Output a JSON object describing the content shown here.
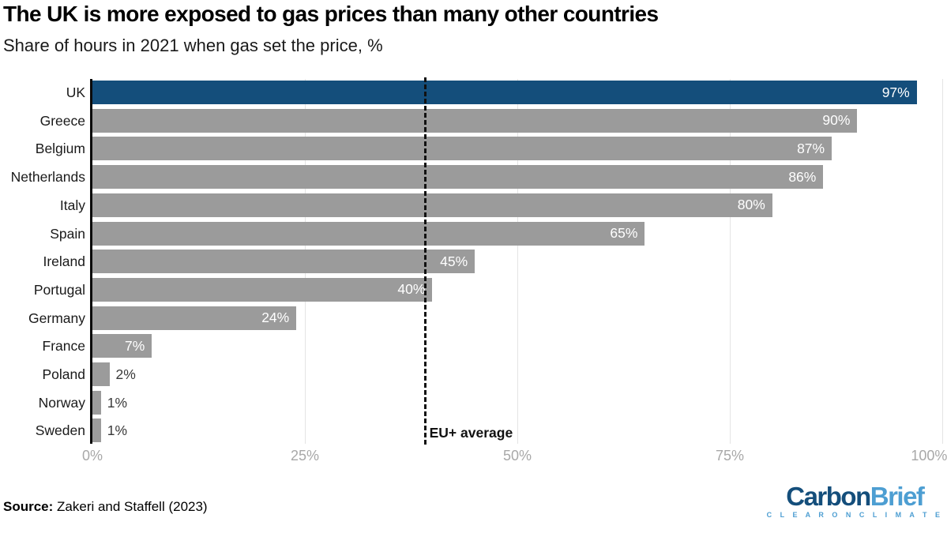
{
  "title": "The UK is more exposed to gas prices than many other countries",
  "subtitle": "Share of hours in 2021 when gas set the price, %",
  "chart_data": {
    "type": "bar",
    "orientation": "horizontal",
    "categories": [
      "UK",
      "Greece",
      "Belgium",
      "Netherlands",
      "Italy",
      "Spain",
      "Ireland",
      "Portugal",
      "Germany",
      "France",
      "Poland",
      "Norway",
      "Sweden"
    ],
    "values": [
      97,
      90,
      87,
      86,
      80,
      65,
      45,
      40,
      24,
      7,
      2,
      1,
      1
    ],
    "value_labels": [
      "97%",
      "90%",
      "87%",
      "86%",
      "80%",
      "65%",
      "45%",
      "40%",
      "24%",
      "7%",
      "2%",
      "1%",
      "1%"
    ],
    "highlight_category": "UK",
    "highlight_color": "#144e7b",
    "bar_color": "#9b9b9b",
    "xlim": [
      0,
      100
    ],
    "x_tick_values": [
      0,
      25,
      50,
      75,
      100
    ],
    "x_tick_labels": [
      "0%",
      "25%",
      "50%",
      "75%",
      "100%"
    ],
    "grid": true,
    "legend": "none",
    "reference_line": {
      "value": 39,
      "label": "EU+ average"
    }
  },
  "source": {
    "label": "Source:",
    "text": " Zakeri and Staffell (2023)"
  },
  "logo": {
    "part1": "Carbon",
    "part2": "Brief",
    "tagline": "C L E A R   O N   C L I M A T E",
    "navy": "#144e7b",
    "light_blue": "#4d9ed2"
  }
}
